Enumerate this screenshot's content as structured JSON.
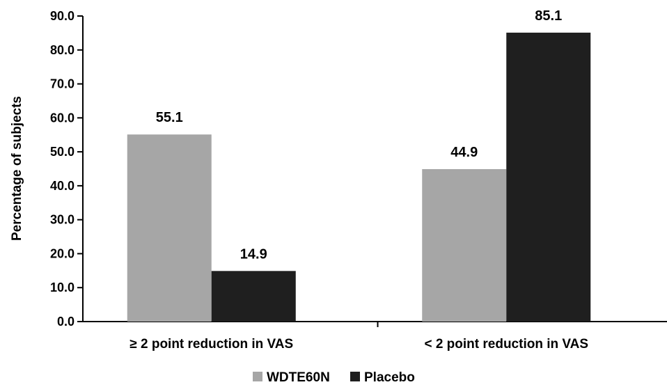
{
  "chart_data": {
    "type": "bar",
    "title": "",
    "xlabel": "",
    "ylabel": "Percentage of subjects",
    "categories": [
      "≥ 2 point reduction in VAS",
      "< 2 point reduction in VAS"
    ],
    "series": [
      {
        "name": "WDTE60N",
        "color": "#a6a6a6",
        "values": [
          55.1,
          44.9
        ]
      },
      {
        "name": "Placebo",
        "color": "#1f1f1f",
        "values": [
          14.9,
          85.1
        ]
      }
    ],
    "ylim": [
      0,
      90
    ],
    "yticks": [
      "0.0",
      "10.0",
      "20.0",
      "30.0",
      "40.0",
      "50.0",
      "60.0",
      "70.0",
      "80.0",
      "90.0"
    ],
    "data_labels": [
      "55.1",
      "14.9",
      "44.9",
      "85.1"
    ],
    "grid": false,
    "legend_position": "bottom-center"
  }
}
